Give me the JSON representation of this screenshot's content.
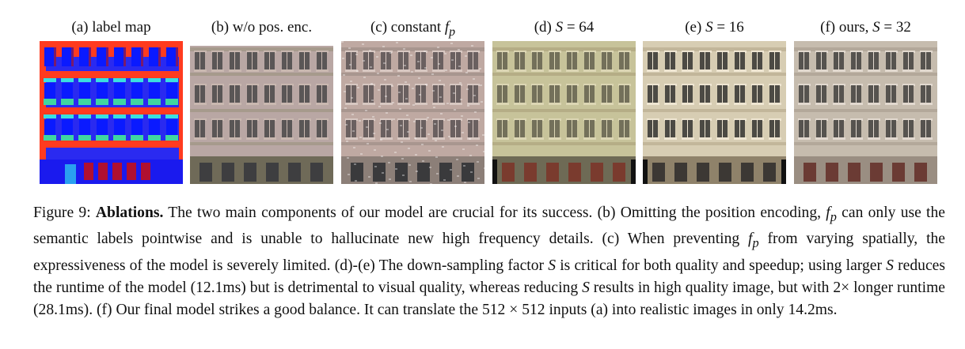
{
  "panels": [
    {
      "label": "(a) label map"
    },
    {
      "label": "(b) w/o pos. enc."
    },
    {
      "label_prefix": "(c) constant ",
      "label_var": "f",
      "label_sub": "p"
    },
    {
      "label_prefix": "(d) ",
      "label_var": "S",
      "label_suffix": " = 64"
    },
    {
      "label_prefix": "(e) ",
      "label_var": "S",
      "label_suffix": " = 16"
    },
    {
      "label_prefix": "(f) ours, ",
      "label_var": "S",
      "label_suffix": " = 32"
    }
  ],
  "caption": {
    "figure_label": "Figure 9:",
    "title": "Ablations.",
    "s1": "The two main components of our model are crucial for its success. (b) Omitting the position encoding,",
    "s2a": "f",
    "s2b": "p",
    "s2c": " can only use the semantic labels pointwise and is unable to hallucinate new high frequency details. (c) When preventing",
    "s3a": "f",
    "s3b": "p",
    "s3c": " from varying spatially, the expressiveness of the model is severely limited. (d)-(e) The down-sampling factor ",
    "s3d": "S",
    "s3e": " is critical",
    "s4a": "for both quality and speedup; using larger ",
    "s4b": "S",
    "s4c": " reduces the runtime of the model (12.1ms) but is detrimental to visual quality,",
    "s5a": "whereas reducing ",
    "s5b": "S",
    "s5c": " results in high quality image, but with 2× longer runtime (28.1ms). (f) Our final model strikes a good",
    "s6": "balance. It can translate the 512 × 512 inputs (a) into realistic images in only 14.2ms."
  }
}
